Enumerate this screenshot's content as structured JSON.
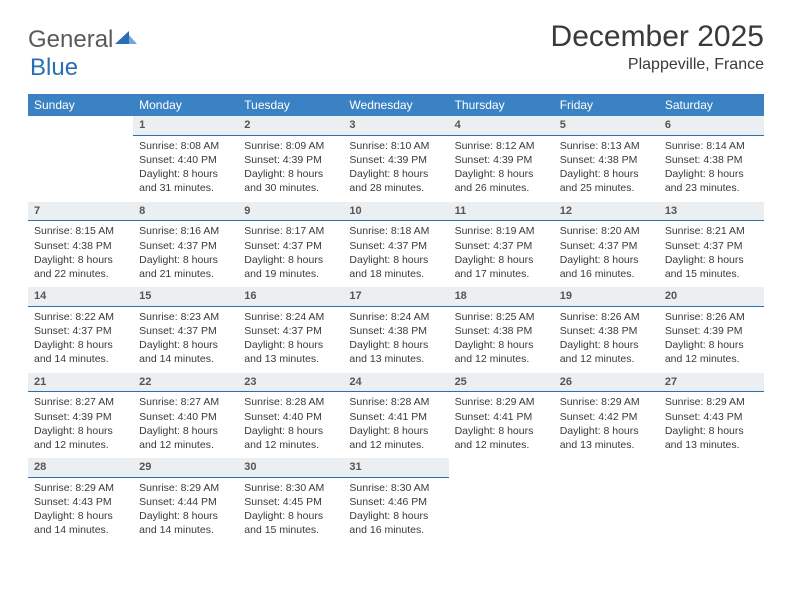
{
  "logo": {
    "general": "General",
    "blue": "Blue"
  },
  "title": "December 2025",
  "location": "Plappeville, France",
  "colors": {
    "header_bg": "#3b82c4",
    "header_text": "#ffffff",
    "daynum_bg": "#eceff2",
    "daynum_border": "#2a6fb5",
    "text": "#3a3a3a"
  },
  "weekdays": [
    "Sunday",
    "Monday",
    "Tuesday",
    "Wednesday",
    "Thursday",
    "Friday",
    "Saturday"
  ],
  "weeks": [
    [
      null,
      {
        "n": "1",
        "sr": "Sunrise: 8:08 AM",
        "ss": "Sunset: 4:40 PM",
        "dl": "Daylight: 8 hours and 31 minutes."
      },
      {
        "n": "2",
        "sr": "Sunrise: 8:09 AM",
        "ss": "Sunset: 4:39 PM",
        "dl": "Daylight: 8 hours and 30 minutes."
      },
      {
        "n": "3",
        "sr": "Sunrise: 8:10 AM",
        "ss": "Sunset: 4:39 PM",
        "dl": "Daylight: 8 hours and 28 minutes."
      },
      {
        "n": "4",
        "sr": "Sunrise: 8:12 AM",
        "ss": "Sunset: 4:39 PM",
        "dl": "Daylight: 8 hours and 26 minutes."
      },
      {
        "n": "5",
        "sr": "Sunrise: 8:13 AM",
        "ss": "Sunset: 4:38 PM",
        "dl": "Daylight: 8 hours and 25 minutes."
      },
      {
        "n": "6",
        "sr": "Sunrise: 8:14 AM",
        "ss": "Sunset: 4:38 PM",
        "dl": "Daylight: 8 hours and 23 minutes."
      }
    ],
    [
      {
        "n": "7",
        "sr": "Sunrise: 8:15 AM",
        "ss": "Sunset: 4:38 PM",
        "dl": "Daylight: 8 hours and 22 minutes."
      },
      {
        "n": "8",
        "sr": "Sunrise: 8:16 AM",
        "ss": "Sunset: 4:37 PM",
        "dl": "Daylight: 8 hours and 21 minutes."
      },
      {
        "n": "9",
        "sr": "Sunrise: 8:17 AM",
        "ss": "Sunset: 4:37 PM",
        "dl": "Daylight: 8 hours and 19 minutes."
      },
      {
        "n": "10",
        "sr": "Sunrise: 8:18 AM",
        "ss": "Sunset: 4:37 PM",
        "dl": "Daylight: 8 hours and 18 minutes."
      },
      {
        "n": "11",
        "sr": "Sunrise: 8:19 AM",
        "ss": "Sunset: 4:37 PM",
        "dl": "Daylight: 8 hours and 17 minutes."
      },
      {
        "n": "12",
        "sr": "Sunrise: 8:20 AM",
        "ss": "Sunset: 4:37 PM",
        "dl": "Daylight: 8 hours and 16 minutes."
      },
      {
        "n": "13",
        "sr": "Sunrise: 8:21 AM",
        "ss": "Sunset: 4:37 PM",
        "dl": "Daylight: 8 hours and 15 minutes."
      }
    ],
    [
      {
        "n": "14",
        "sr": "Sunrise: 8:22 AM",
        "ss": "Sunset: 4:37 PM",
        "dl": "Daylight: 8 hours and 14 minutes."
      },
      {
        "n": "15",
        "sr": "Sunrise: 8:23 AM",
        "ss": "Sunset: 4:37 PM",
        "dl": "Daylight: 8 hours and 14 minutes."
      },
      {
        "n": "16",
        "sr": "Sunrise: 8:24 AM",
        "ss": "Sunset: 4:37 PM",
        "dl": "Daylight: 8 hours and 13 minutes."
      },
      {
        "n": "17",
        "sr": "Sunrise: 8:24 AM",
        "ss": "Sunset: 4:38 PM",
        "dl": "Daylight: 8 hours and 13 minutes."
      },
      {
        "n": "18",
        "sr": "Sunrise: 8:25 AM",
        "ss": "Sunset: 4:38 PM",
        "dl": "Daylight: 8 hours and 12 minutes."
      },
      {
        "n": "19",
        "sr": "Sunrise: 8:26 AM",
        "ss": "Sunset: 4:38 PM",
        "dl": "Daylight: 8 hours and 12 minutes."
      },
      {
        "n": "20",
        "sr": "Sunrise: 8:26 AM",
        "ss": "Sunset: 4:39 PM",
        "dl": "Daylight: 8 hours and 12 minutes."
      }
    ],
    [
      {
        "n": "21",
        "sr": "Sunrise: 8:27 AM",
        "ss": "Sunset: 4:39 PM",
        "dl": "Daylight: 8 hours and 12 minutes."
      },
      {
        "n": "22",
        "sr": "Sunrise: 8:27 AM",
        "ss": "Sunset: 4:40 PM",
        "dl": "Daylight: 8 hours and 12 minutes."
      },
      {
        "n": "23",
        "sr": "Sunrise: 8:28 AM",
        "ss": "Sunset: 4:40 PM",
        "dl": "Daylight: 8 hours and 12 minutes."
      },
      {
        "n": "24",
        "sr": "Sunrise: 8:28 AM",
        "ss": "Sunset: 4:41 PM",
        "dl": "Daylight: 8 hours and 12 minutes."
      },
      {
        "n": "25",
        "sr": "Sunrise: 8:29 AM",
        "ss": "Sunset: 4:41 PM",
        "dl": "Daylight: 8 hours and 12 minutes."
      },
      {
        "n": "26",
        "sr": "Sunrise: 8:29 AM",
        "ss": "Sunset: 4:42 PM",
        "dl": "Daylight: 8 hours and 13 minutes."
      },
      {
        "n": "27",
        "sr": "Sunrise: 8:29 AM",
        "ss": "Sunset: 4:43 PM",
        "dl": "Daylight: 8 hours and 13 minutes."
      }
    ],
    [
      {
        "n": "28",
        "sr": "Sunrise: 8:29 AM",
        "ss": "Sunset: 4:43 PM",
        "dl": "Daylight: 8 hours and 14 minutes."
      },
      {
        "n": "29",
        "sr": "Sunrise: 8:29 AM",
        "ss": "Sunset: 4:44 PM",
        "dl": "Daylight: 8 hours and 14 minutes."
      },
      {
        "n": "30",
        "sr": "Sunrise: 8:30 AM",
        "ss": "Sunset: 4:45 PM",
        "dl": "Daylight: 8 hours and 15 minutes."
      },
      {
        "n": "31",
        "sr": "Sunrise: 8:30 AM",
        "ss": "Sunset: 4:46 PM",
        "dl": "Daylight: 8 hours and 16 minutes."
      },
      null,
      null,
      null
    ]
  ]
}
